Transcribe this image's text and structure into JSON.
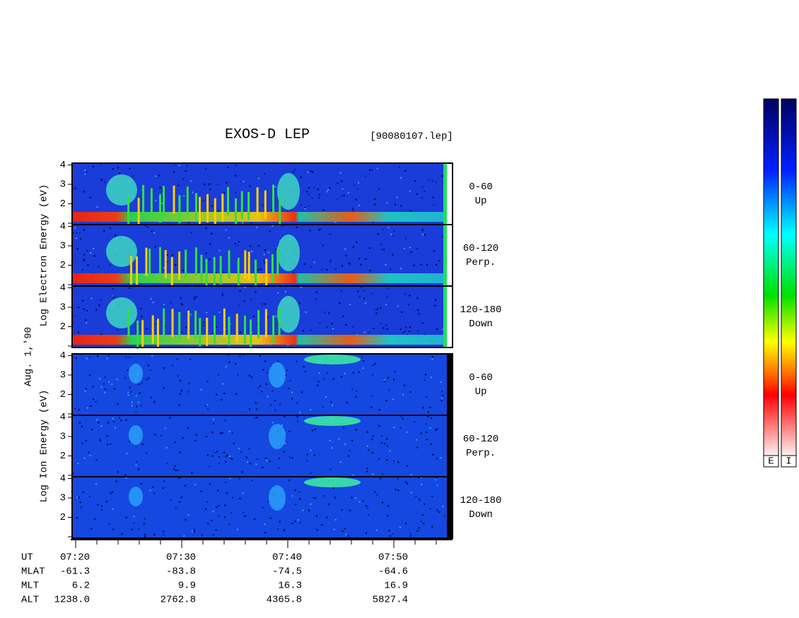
{
  "title": "EXOS-D LEP",
  "file": "[90080107.lep]",
  "date": "Aug. 1,'90",
  "yticks": [
    2,
    3,
    4
  ],
  "electron": {
    "axis_label": "Log Electron Energy (eV)",
    "panels": [
      {
        "angle": "0-60",
        "direction": "Up"
      },
      {
        "angle": "60-120",
        "direction": "Perp."
      },
      {
        "angle": "120-180",
        "direction": "Down"
      }
    ]
  },
  "ion": {
    "axis_label": "Log Ion Energy (eV)",
    "panels": [
      {
        "angle": "0-60",
        "direction": "Up"
      },
      {
        "angle": "60-120",
        "direction": "Perp."
      },
      {
        "angle": "120-180",
        "direction": "Down"
      }
    ]
  },
  "time_axis": {
    "rows": [
      {
        "label": "UT",
        "values": [
          "07:20",
          "07:30",
          "07:40",
          "07:50"
        ]
      },
      {
        "label": "MLAT",
        "values": [
          -61.3,
          -83.8,
          -74.5,
          -64.6
        ]
      },
      {
        "label": "MLT",
        "values": [
          6.2,
          9.9,
          16.3,
          16.9
        ]
      },
      {
        "label": "ALT",
        "values": [
          "1238.0",
          "2762.8",
          "4365.8",
          "5827.4"
        ]
      }
    ]
  },
  "colorbars": [
    "E",
    "I"
  ]
}
